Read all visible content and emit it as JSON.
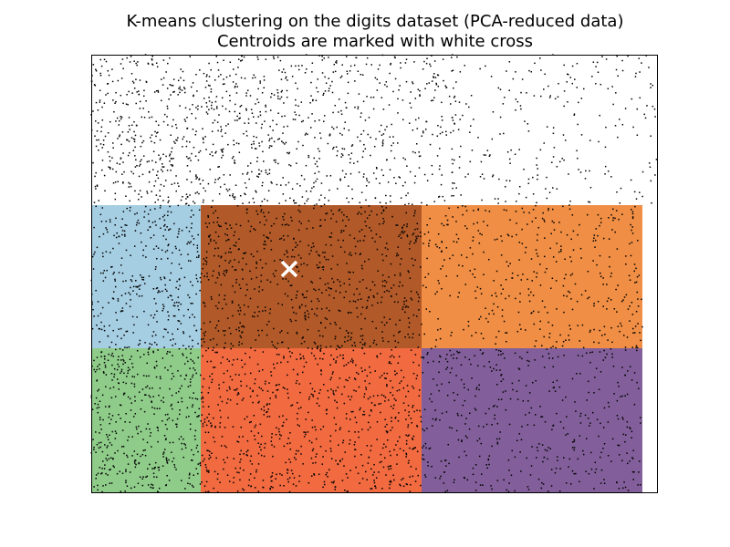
{
  "chart_data": {
    "type": "scatter",
    "title": "K-means clustering on the digits dataset (PCA-reduced data)",
    "subtitle": "Centroids are marked with white cross",
    "xlabel": "",
    "ylabel": "",
    "grid": false,
    "axis_ticks": "hidden",
    "legend": "none",
    "xlim": [
      0,
      620
    ],
    "ylim": [
      0,
      480
    ],
    "regions": [
      {
        "x0": 0,
        "x1": 120,
        "y0": 158,
        "y1": 315,
        "color": "#a6cee3"
      },
      {
        "x0": 120,
        "x1": 362,
        "y0": 158,
        "y1": 315,
        "color": "#b15928"
      },
      {
        "x0": 362,
        "x1": 604,
        "y0": 158,
        "y1": 315,
        "color": "#ef8e44"
      },
      {
        "x0": 0,
        "x1": 120,
        "y0": 0,
        "y1": 158,
        "color": "#8fcc8a"
      },
      {
        "x0": 120,
        "x1": 362,
        "y0": 0,
        "y1": 158,
        "color": "#f16a40"
      },
      {
        "x0": 362,
        "x1": 604,
        "y0": 0,
        "y1": 158,
        "color": "#825f9a"
      }
    ],
    "points": {
      "color": "#000000",
      "density": [
        {
          "x0": 0,
          "x1": 120,
          "y0": 158,
          "y1": 315,
          "count": 360
        },
        {
          "x0": 120,
          "x1": 362,
          "y0": 158,
          "y1": 315,
          "count": 720
        },
        {
          "x0": 362,
          "x1": 604,
          "y0": 158,
          "y1": 315,
          "count": 420
        },
        {
          "x0": 0,
          "x1": 120,
          "y0": 0,
          "y1": 158,
          "count": 460
        },
        {
          "x0": 120,
          "x1": 362,
          "y0": 0,
          "y1": 158,
          "count": 760
        },
        {
          "x0": 362,
          "x1": 604,
          "y0": 0,
          "y1": 158,
          "count": 440
        },
        {
          "x0": 0,
          "x1": 200,
          "y0": 315,
          "y1": 480,
          "count": 650
        },
        {
          "x0": 200,
          "x1": 400,
          "y0": 315,
          "y1": 480,
          "count": 480
        },
        {
          "x0": 400,
          "x1": 620,
          "y0": 315,
          "y1": 480,
          "count": 230
        }
      ]
    },
    "centroids": [
      {
        "x": 217,
        "y": 245,
        "marker": "x",
        "color": "#ffffff"
      }
    ]
  }
}
